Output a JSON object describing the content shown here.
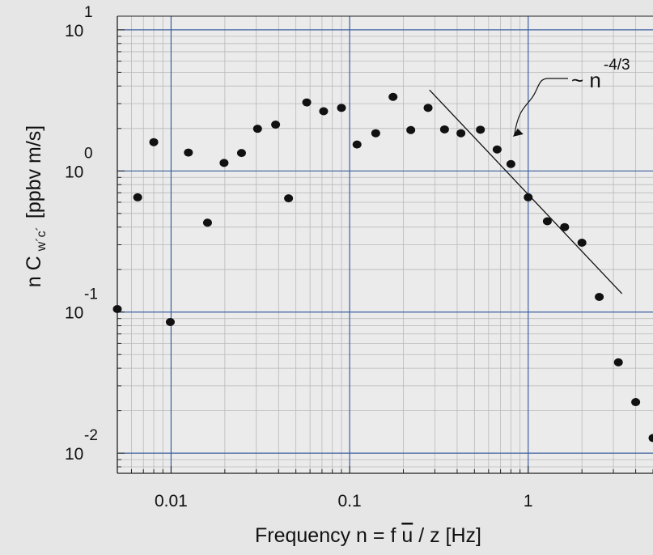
{
  "chart_data": {
    "type": "scatter",
    "title": "",
    "xlabel": {
      "prefix": "Frequency  n = f ",
      "ubar": "u",
      "suffix": " / z [Hz]"
    },
    "ylabel": {
      "main": "n C",
      "subscript": "w´c´",
      "unit": "[ppbv m/s]"
    },
    "x_scale": "log",
    "y_scale": "log",
    "xlim": [
      0.005,
      5.0
    ],
    "ylim": [
      0.0072,
      12.5
    ],
    "grid": true,
    "x_ticks": [
      {
        "value": 0.01,
        "label": "0.01"
      },
      {
        "value": 0.1,
        "label": "0.1"
      },
      {
        "value": 1,
        "label": "1"
      }
    ],
    "y_ticks": [
      {
        "value": 10,
        "base": "10",
        "exp": "1"
      },
      {
        "value": 1,
        "base": "10",
        "exp": "0"
      },
      {
        "value": 0.1,
        "base": "10",
        "exp": "-1"
      },
      {
        "value": 0.01,
        "base": "10",
        "exp": "-2"
      }
    ],
    "points": [
      {
        "x": 0.005,
        "y": 0.105
      },
      {
        "x": 0.0065,
        "y": 0.65
      },
      {
        "x": 0.008,
        "y": 1.6
      },
      {
        "x": 0.0099,
        "y": 0.085
      },
      {
        "x": 0.0125,
        "y": 1.35
      },
      {
        "x": 0.016,
        "y": 0.43
      },
      {
        "x": 0.0198,
        "y": 1.14
      },
      {
        "x": 0.0248,
        "y": 1.34
      },
      {
        "x": 0.0305,
        "y": 1.99
      },
      {
        "x": 0.0385,
        "y": 2.13
      },
      {
        "x": 0.0455,
        "y": 0.64
      },
      {
        "x": 0.0575,
        "y": 3.06
      },
      {
        "x": 0.0715,
        "y": 2.65
      },
      {
        "x": 0.09,
        "y": 2.8
      },
      {
        "x": 0.11,
        "y": 1.54
      },
      {
        "x": 0.14,
        "y": 1.85
      },
      {
        "x": 0.175,
        "y": 3.35
      },
      {
        "x": 0.22,
        "y": 1.95
      },
      {
        "x": 0.275,
        "y": 2.8
      },
      {
        "x": 0.34,
        "y": 1.97
      },
      {
        "x": 0.42,
        "y": 1.85
      },
      {
        "x": 0.54,
        "y": 1.96
      },
      {
        "x": 0.67,
        "y": 1.42
      },
      {
        "x": 0.8,
        "y": 1.12
      },
      {
        "x": 1.0,
        "y": 0.65
      },
      {
        "x": 1.28,
        "y": 0.44
      },
      {
        "x": 1.6,
        "y": 0.4
      },
      {
        "x": 2.0,
        "y": 0.31
      },
      {
        "x": 2.5,
        "y": 0.128
      },
      {
        "x": 3.2,
        "y": 0.044
      },
      {
        "x": 4.0,
        "y": 0.023
      },
      {
        "x": 5.0,
        "y": 0.0128
      }
    ],
    "fit_line": {
      "x": [
        0.28,
        3.35
      ],
      "y": [
        3.75,
        0.135
      ]
    },
    "annotation": {
      "text": "~ n",
      "exponent": "-4/3",
      "arrow_to": {
        "x": 0.82,
        "y": 1.75
      }
    },
    "colors": {
      "background": "#e6e6e6",
      "plot_background": "#ebebeb",
      "major_grid": "#3c5f9f",
      "minor_grid": "#b9b9b9",
      "axis": "#222222",
      "marker": "#111111",
      "fit_line": "#111111"
    }
  }
}
